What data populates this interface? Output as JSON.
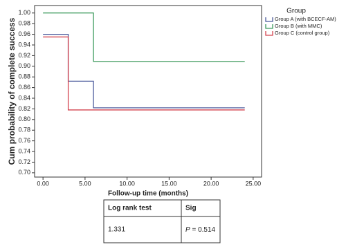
{
  "chart_data": {
    "type": "step",
    "x_label": "Follow-up time (months)",
    "y_label": "Cum probability of complete success",
    "legend_title": "Group",
    "legend": "right",
    "xlim": [
      -1,
      26
    ],
    "ylim": [
      0.692,
      1.014
    ],
    "xticks": [
      {
        "value": 0,
        "label": "0.00"
      },
      {
        "value": 5,
        "label": "5.00"
      },
      {
        "value": 10,
        "label": "10.00"
      },
      {
        "value": 15,
        "label": "15.00"
      },
      {
        "value": 20,
        "label": "20.00"
      },
      {
        "value": 25,
        "label": "25.00"
      }
    ],
    "yticks": [
      {
        "value": 0.7,
        "label": "0.70"
      },
      {
        "value": 0.72,
        "label": "0.72"
      },
      {
        "value": 0.74,
        "label": "0.74"
      },
      {
        "value": 0.76,
        "label": "0.76"
      },
      {
        "value": 0.78,
        "label": "0.78"
      },
      {
        "value": 0.8,
        "label": "0.80"
      },
      {
        "value": 0.82,
        "label": "0.82"
      },
      {
        "value": 0.84,
        "label": "0.84"
      },
      {
        "value": 0.86,
        "label": "0.86"
      },
      {
        "value": 0.88,
        "label": "0.88"
      },
      {
        "value": 0.9,
        "label": "0.90"
      },
      {
        "value": 0.92,
        "label": "0.92"
      },
      {
        "value": 0.94,
        "label": "0.94"
      },
      {
        "value": 0.96,
        "label": "0.96"
      },
      {
        "value": 0.98,
        "label": "0.98"
      },
      {
        "value": 1.0,
        "label": "1.00"
      }
    ],
    "series": [
      {
        "name": "Group A (with BCECF-AM)",
        "color": "#4b5a9c",
        "x": [
          0,
          3,
          6,
          24
        ],
        "values": [
          0.96,
          0.872,
          0.822,
          0.822
        ]
      },
      {
        "name": "Group B (with MMC)",
        "color": "#3c9a5c",
        "x": [
          0,
          6,
          24
        ],
        "values": [
          1.0,
          0.909,
          0.909
        ]
      },
      {
        "name": "Group C (control group)",
        "color": "#d4434f",
        "x": [
          0,
          3,
          24
        ],
        "values": [
          0.955,
          0.818,
          0.818
        ]
      }
    ]
  },
  "table": {
    "header": [
      "Log rank test",
      "Sig"
    ],
    "row": {
      "statistic": "1.331",
      "sig_symbol": "P",
      "sig_value": "= 0.514"
    }
  }
}
